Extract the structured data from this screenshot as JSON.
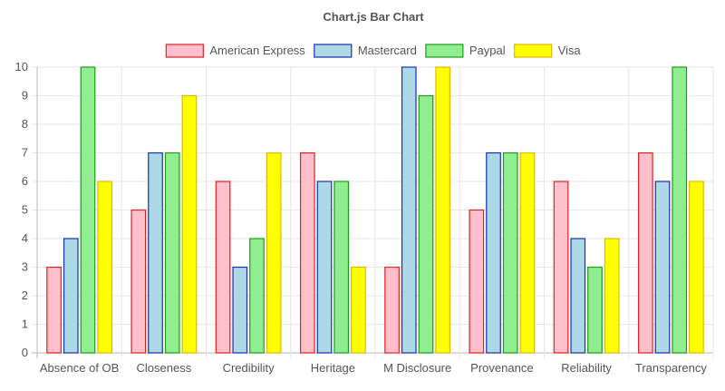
{
  "chart_data": {
    "type": "bar",
    "title": "Chart.js Bar Chart",
    "categories": [
      "Absence of OB",
      "Closeness",
      "Credibility",
      "Heritage",
      "M Disclosure",
      "Provenance",
      "Reliability",
      "Transparency"
    ],
    "series": [
      {
        "name": "American Express",
        "values": [
          3,
          5,
          6,
          7,
          3,
          5,
          6,
          7
        ],
        "fill": "#ffc0cb",
        "stroke": "#dd2222"
      },
      {
        "name": "Mastercard",
        "values": [
          4,
          7,
          3,
          6,
          10,
          7,
          4,
          6
        ],
        "fill": "#add8e6",
        "stroke": "#1a2eb0"
      },
      {
        "name": "Paypal",
        "values": [
          10,
          7,
          4,
          6,
          9,
          7,
          3,
          10
        ],
        "fill": "#90ee90",
        "stroke": "#1f9a1f"
      },
      {
        "name": "Visa",
        "values": [
          6,
          9,
          7,
          3,
          10,
          7,
          4,
          6
        ],
        "fill": "#ffff00",
        "stroke": "#e0b800"
      }
    ],
    "ylim": [
      0,
      10
    ],
    "yticks": [
      "0",
      "1",
      "2",
      "3",
      "4",
      "5",
      "6",
      "7",
      "8",
      "9",
      "10"
    ],
    "grid": true,
    "legend_position": "top"
  }
}
